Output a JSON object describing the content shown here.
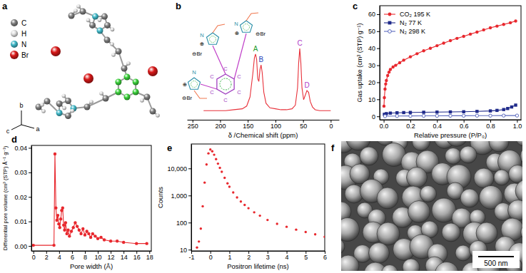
{
  "structure": {
    "panel_label": "a",
    "legend": [
      {
        "name": "C",
        "color": "#808080"
      },
      {
        "name": "H",
        "color": "#e0e0e0"
      },
      {
        "name": "N",
        "color": "#3fb8c8"
      },
      {
        "name": "Br",
        "color": "#d81818"
      }
    ],
    "axes_labels": [
      "c",
      "b",
      "a"
    ]
  },
  "chart_data": [
    {
      "panel_label": "b",
      "type": "line",
      "x_label": "δ /Chemical shift (ppm)",
      "xlim": [
        260,
        -15
      ],
      "xticks": [
        250,
        200,
        150,
        100,
        50,
        0
      ],
      "ylim": [
        0,
        1
      ],
      "tick_labels": "x",
      "color": "#e8313a",
      "x": [
        230,
        210,
        190,
        175,
        160,
        152,
        146,
        141,
        138,
        136,
        134,
        132,
        130,
        128,
        126,
        124,
        121,
        117,
        110,
        100,
        90,
        80,
        70,
        64,
        60,
        58,
        56,
        54,
        52,
        49,
        46,
        43,
        40,
        37,
        33,
        28,
        20,
        10,
        0
      ],
      "values": [
        0.1,
        0.1,
        0.1,
        0.11,
        0.12,
        0.15,
        0.25,
        0.5,
        0.68,
        0.72,
        0.66,
        0.45,
        0.42,
        0.55,
        0.6,
        0.52,
        0.3,
        0.18,
        0.13,
        0.12,
        0.11,
        0.11,
        0.12,
        0.16,
        0.35,
        0.62,
        0.78,
        0.62,
        0.35,
        0.22,
        0.27,
        0.32,
        0.3,
        0.2,
        0.14,
        0.11,
        0.1,
        0.1,
        0.1
      ],
      "annotations": [
        {
          "text": "A",
          "x": 136,
          "y": 0.72,
          "color": "#1f9d2f"
        },
        {
          "text": "B",
          "x": 126,
          "y": 0.6,
          "color": "#2a3fb8"
        },
        {
          "text": "C",
          "x": 56,
          "y": 0.78,
          "color": "#b03cc8"
        },
        {
          "text": "D",
          "x": 43,
          "y": 0.32,
          "color": "#b03cc8"
        }
      ],
      "inset_labels": [
        "C",
        "C",
        "C",
        "C",
        "C",
        "C",
        "N",
        "⊕",
        "⊖Br",
        "N",
        "⊕",
        "⊖Br",
        "N",
        "⊕",
        "⊖Br"
      ]
    },
    {
      "panel_label": "c",
      "type": "line",
      "x_label": "Relative pressure (P/P₀)",
      "y_label": "Gas uptake (cm³ (STP) g⁻¹)",
      "xlim": [
        -0.03,
        1.03
      ],
      "ylim": [
        -2,
        65
      ],
      "xticks": [
        {
          "value": 0,
          "label": "0.0"
        },
        0.2,
        0.4,
        0.6,
        0.8,
        {
          "value": 1,
          "label": "1.0"
        }
      ],
      "yticks": [
        0,
        10,
        20,
        30,
        40,
        50,
        60
      ],
      "legend": "upper left",
      "series": [
        {
          "name": "CO₂ 195 K",
          "color": "#e8282e",
          "marker": "circle",
          "x": [
            0.002,
            0.005,
            0.01,
            0.015,
            0.02,
            0.03,
            0.04,
            0.05,
            0.07,
            0.09,
            0.12,
            0.15,
            0.2,
            0.25,
            0.3,
            0.35,
            0.4,
            0.45,
            0.5,
            0.55,
            0.6,
            0.65,
            0.7,
            0.75,
            0.8,
            0.85,
            0.9,
            0.95,
            0.99
          ],
          "values": [
            6,
            11,
            16,
            19,
            21,
            24,
            26,
            27.5,
            29,
            30,
            31.5,
            33,
            35,
            36.8,
            38.5,
            40,
            41.5,
            43,
            44.5,
            45.8,
            47,
            48.3,
            49.5,
            50.8,
            52,
            53,
            54,
            55,
            56
          ]
        },
        {
          "name": "N₂ 77 K",
          "color": "#1f2a8a",
          "marker": "square",
          "x": [
            0.005,
            0.02,
            0.05,
            0.1,
            0.15,
            0.2,
            0.3,
            0.4,
            0.5,
            0.6,
            0.7,
            0.8,
            0.85,
            0.9,
            0.93,
            0.96,
            0.99
          ],
          "values": [
            1.2,
            1.6,
            1.9,
            2.1,
            2.2,
            2.3,
            2.4,
            2.5,
            2.6,
            2.7,
            2.9,
            3.2,
            3.5,
            4,
            4.6,
            5.5,
            6.6
          ]
        },
        {
          "name": "N₂ 298 K",
          "color": "#5b6abf",
          "marker": "open-circle",
          "x": [
            0.01,
            0.1,
            0.2,
            0.3,
            0.4,
            0.5,
            0.6,
            0.7,
            0.8,
            0.9,
            1.0
          ],
          "values": [
            0.1,
            0.2,
            0.25,
            0.3,
            0.3,
            0.35,
            0.35,
            0.4,
            0.4,
            0.45,
            0.45
          ]
        }
      ]
    },
    {
      "panel_label": "d",
      "type": "line",
      "marker": "circle",
      "color": "#e8282e",
      "x_label": "Pore width (Å)",
      "y_label": "Differential pore volume (cm³ (STP) Å⁻¹ g⁻¹)",
      "xlim": [
        -0.3,
        18.3
      ],
      "ylim": [
        -0.002,
        0.041
      ],
      "xticks": [
        0,
        2,
        4,
        6,
        8,
        10,
        12,
        14,
        16,
        18
      ],
      "yticks": [
        {
          "value": 0,
          "label": "0.00"
        },
        0.01,
        0.02,
        0.03,
        0.04
      ],
      "x": [
        0,
        3.2,
        3.35,
        3.5,
        3.65,
        3.8,
        3.95,
        4.1,
        4.25,
        4.4,
        4.55,
        4.7,
        4.85,
        5.0,
        5.2,
        5.4,
        5.6,
        5.9,
        6.2,
        6.5,
        6.8,
        7.1,
        7.4,
        7.7,
        8.0,
        8.3,
        8.6,
        8.9,
        9.2,
        9.6,
        10.0,
        10.5,
        11,
        12,
        13,
        14,
        16,
        17.6
      ],
      "values": [
        0.0003,
        0.0003,
        0.0375,
        0.0155,
        0.0105,
        0.0125,
        0.009,
        0.0075,
        0.011,
        0.0145,
        0.0155,
        0.0085,
        0.0065,
        0.0095,
        0.005,
        0.0065,
        0.004,
        0.006,
        0.0075,
        0.0095,
        0.008,
        0.0065,
        0.005,
        0.007,
        0.0045,
        0.006,
        0.005,
        0.0035,
        0.005,
        0.004,
        0.003,
        0.0035,
        0.0025,
        0.002,
        0.002,
        0.0015,
        0.001,
        0.001
      ]
    },
    {
      "panel_label": "e",
      "type": "scatter",
      "marker": "circle",
      "color": "#e8282e",
      "log": "y",
      "x_label": "Positron lifetime (ns)",
      "y_label": "Counts",
      "xlim": [
        -1,
        6
      ],
      "ylim": [
        9,
        80000
      ],
      "xticks": [
        -1,
        0,
        1,
        2,
        3,
        4,
        5,
        6
      ],
      "yticks": [
        10,
        100,
        {
          "value": 1000,
          "label": "1,000"
        },
        {
          "value": 10000,
          "label": "10,000"
        }
      ],
      "x": [
        -0.7,
        -0.6,
        -0.5,
        -0.4,
        -0.3,
        -0.2,
        -0.1,
        0,
        0.1,
        0.2,
        0.3,
        0.4,
        0.5,
        0.6,
        0.75,
        0.9,
        1.0,
        1.2,
        1.4,
        1.6,
        1.8,
        2.0,
        2.3,
        2.6,
        3.0,
        3.5,
        4.0,
        4.5,
        5.0,
        5.5,
        6.0
      ],
      "values": [
        12,
        20,
        60,
        400,
        3000,
        14000,
        36000,
        50000,
        43000,
        32000,
        22000,
        15000,
        10500,
        7500,
        4500,
        2800,
        2100,
        1300,
        850,
        600,
        450,
        340,
        240,
        180,
        125,
        90,
        70,
        55,
        45,
        37,
        30
      ]
    }
  ],
  "image": {
    "panel_label": "f",
    "scale_bar": "500 nm"
  }
}
